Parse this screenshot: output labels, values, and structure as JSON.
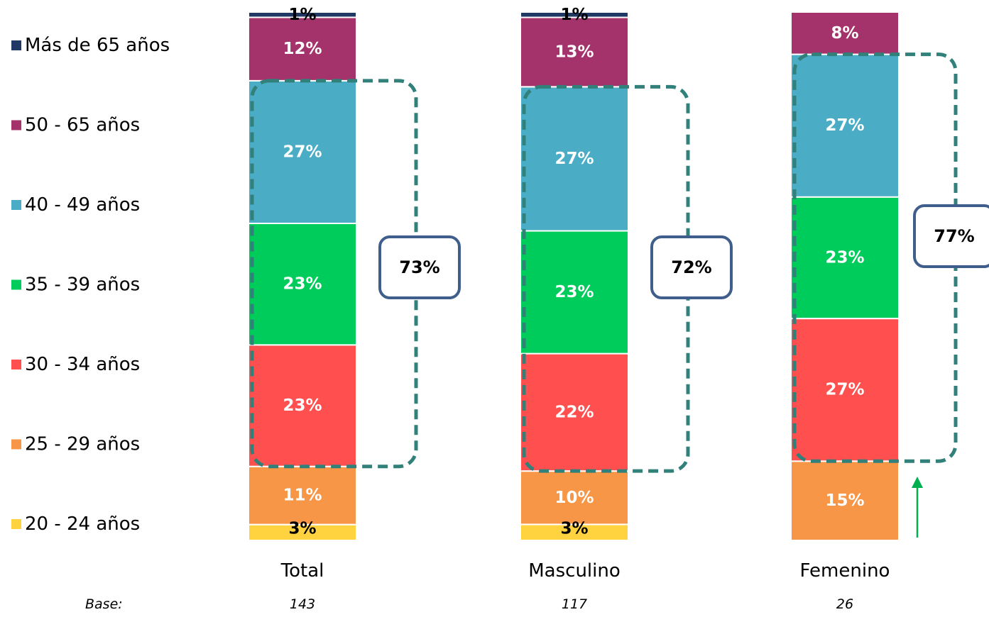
{
  "chart_data": {
    "type": "bar",
    "stacked": true,
    "normalized": true,
    "categories": [
      "Total",
      "Masculino",
      "Femenino"
    ],
    "series": [
      {
        "name": "20 - 24 años",
        "color": "#FFD23F",
        "values": [
          3,
          3,
          0
        ],
        "labels": [
          "3%",
          "3%",
          ""
        ]
      },
      {
        "name": "25 - 29 años",
        "color": "#F79646",
        "values": [
          11,
          10,
          15
        ],
        "labels": [
          "11%",
          "10%",
          "15%"
        ]
      },
      {
        "name": "30 - 34 años",
        "color": "#FF4F4F",
        "values": [
          23,
          22,
          27
        ],
        "labels": [
          "23%",
          "22%",
          "27%"
        ]
      },
      {
        "name": "35 - 39 años",
        "color": "#00CC5C",
        "values": [
          23,
          23,
          23
        ],
        "labels": [
          "23%",
          "23%",
          "23%"
        ]
      },
      {
        "name": "40 - 49 años",
        "color": "#4BACC6",
        "values": [
          27,
          27,
          27
        ],
        "labels": [
          "27%",
          "27%",
          "27%"
        ]
      },
      {
        "name": "50 - 65 años",
        "color": "#A5336B",
        "values": [
          12,
          13,
          8
        ],
        "labels": [
          "12%",
          "13%",
          "8%"
        ]
      },
      {
        "name": "Más de 65 años",
        "color": "#1F3864",
        "values": [
          1,
          1,
          0
        ],
        "labels": [
          "1%",
          "1%",
          ""
        ]
      }
    ],
    "legend_position": "left",
    "callouts": [
      {
        "category": "Total",
        "label": "73%",
        "from_series": "30 - 34 años",
        "to_series": "40 - 49 años"
      },
      {
        "category": "Masculino",
        "label": "72%",
        "from_series": "30 - 34 años",
        "to_series": "40 - 49 años"
      },
      {
        "category": "Femenino",
        "label": "77%",
        "from_series": "30 - 34 años",
        "to_series": "40 - 49 años"
      }
    ],
    "base": {
      "label": "Base:",
      "values": [
        "143",
        "117",
        "26"
      ]
    },
    "indicator": {
      "category": "Femenino",
      "direction": "up",
      "color": "#00B050"
    },
    "colors": {
      "callout_dash": "#31807A",
      "callout_box": "#3F5E8C"
    }
  }
}
